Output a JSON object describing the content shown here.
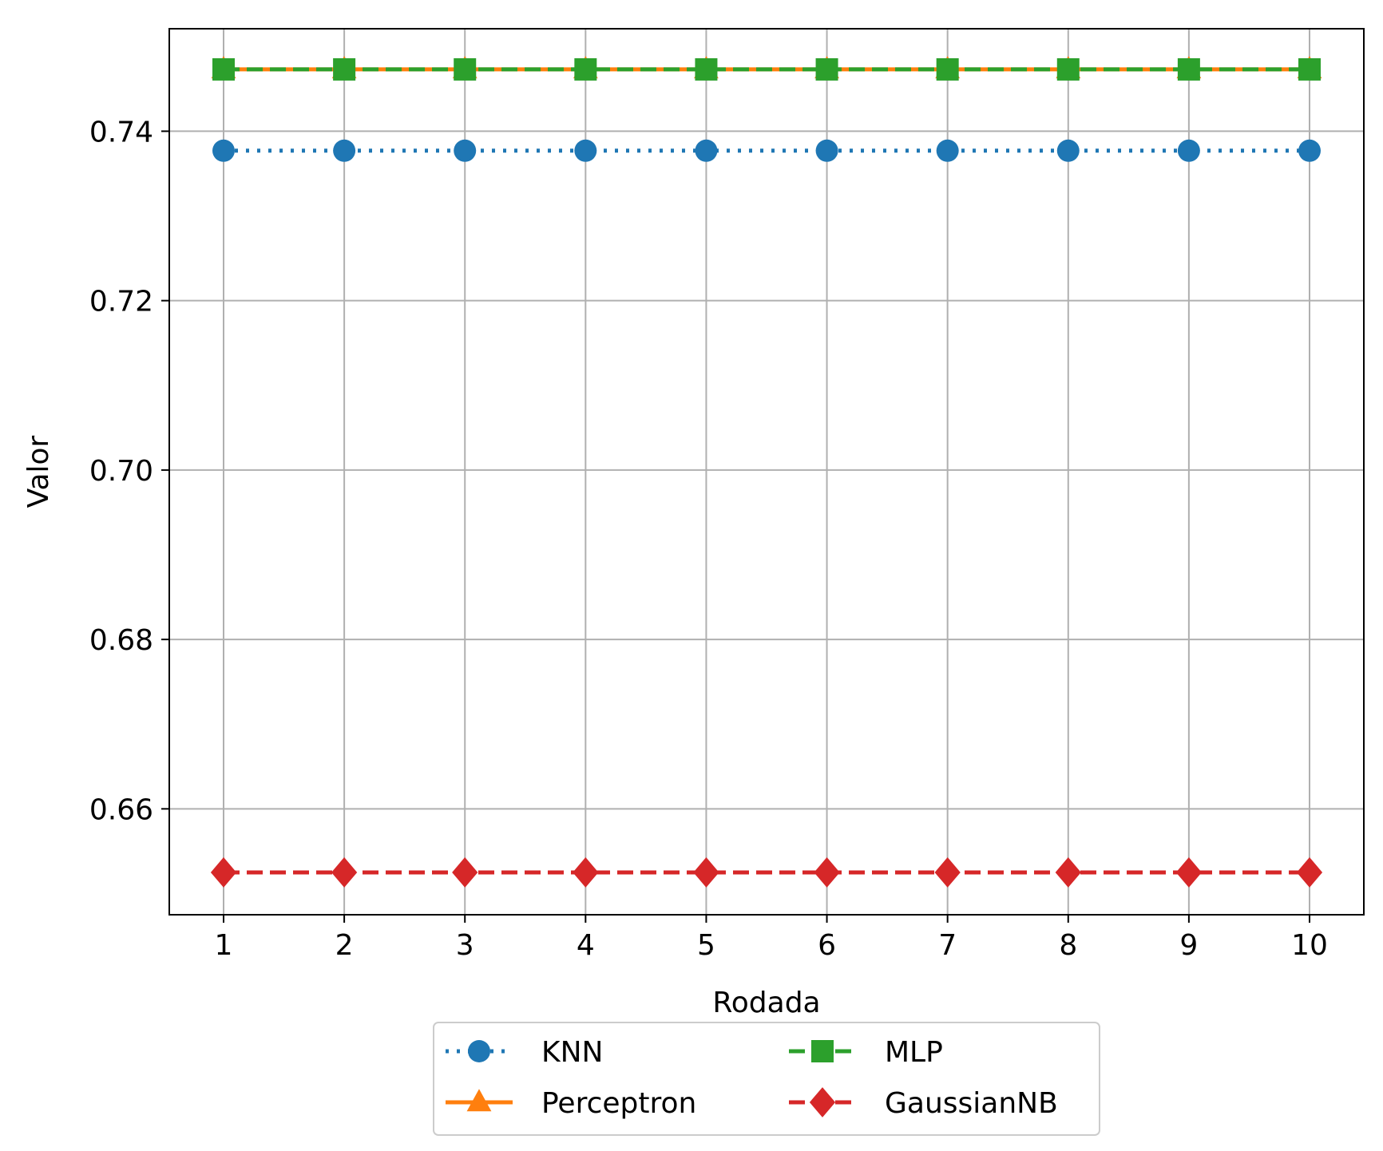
{
  "chart_data": {
    "type": "line",
    "title": "",
    "xlabel": "Rodada",
    "ylabel": "Valor",
    "x": [
      1,
      2,
      3,
      4,
      5,
      6,
      7,
      8,
      9,
      10
    ],
    "xlim": [
      0.55,
      10.45
    ],
    "ylim": [
      0.6475,
      0.7521
    ],
    "yticks": [
      0.66,
      0.68,
      0.7,
      0.72,
      0.74
    ],
    "ytick_labels": [
      "0.66",
      "0.68",
      "0.70",
      "0.72",
      "0.74"
    ],
    "xtick_labels": [
      "1",
      "2",
      "3",
      "4",
      "5",
      "6",
      "7",
      "8",
      "9",
      "10"
    ],
    "grid": true,
    "legend": {
      "placement": "bottom-center, below plot",
      "columns": 2
    },
    "series": [
      {
        "name": "KNN",
        "values": [
          0.7377,
          0.7377,
          0.7377,
          0.7377,
          0.7377,
          0.7377,
          0.7377,
          0.7377,
          0.7377,
          0.7377
        ],
        "color": "#1f77b4",
        "marker": "circle",
        "linestyle": "dotted"
      },
      {
        "name": "Perceptron",
        "values": [
          0.7473,
          0.7473,
          0.7473,
          0.7473,
          0.7473,
          0.7473,
          0.7473,
          0.7473,
          0.7473,
          0.7473
        ],
        "color": "#ff7f0e",
        "marker": "triangle",
        "linestyle": "solid"
      },
      {
        "name": "MLP",
        "values": [
          0.7473,
          0.7473,
          0.7473,
          0.7473,
          0.7473,
          0.7473,
          0.7473,
          0.7473,
          0.7473,
          0.7473
        ],
        "color": "#2ca02c",
        "marker": "square",
        "linestyle": "dashed"
      },
      {
        "name": "GaussianNB",
        "values": [
          0.6525,
          0.6525,
          0.6525,
          0.6525,
          0.6525,
          0.6525,
          0.6525,
          0.6525,
          0.6525,
          0.6525
        ],
        "color": "#d62728",
        "marker": "diamond",
        "linestyle": "dashed"
      }
    ]
  }
}
